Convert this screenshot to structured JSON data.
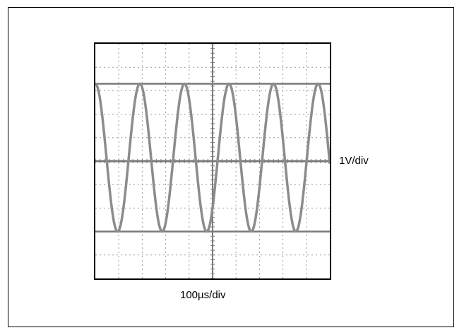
{
  "chart_data": {
    "type": "line",
    "title": "",
    "vertical_scale_label": "1V/div",
    "horizontal_scale_label": "100µs/div",
    "x_divisions": 10,
    "y_divisions": 10,
    "x_unit": "µs",
    "y_unit": "V",
    "xlim": [
      0,
      1000
    ],
    "ylim": [
      -5,
      5
    ],
    "grid": true,
    "cursor_lines_V": [
      3.3,
      0,
      -3.0
    ],
    "series": [
      {
        "waveform": "sine",
        "amplitude_V": 3.15,
        "offset_V": 0.15,
        "period_us": 190,
        "phase_deg": 90
      }
    ],
    "colors": {
      "frame": "#000000",
      "grid": "#9a9a9a",
      "trace": "#8c8c8c",
      "axis": "#7a7a7a"
    }
  }
}
